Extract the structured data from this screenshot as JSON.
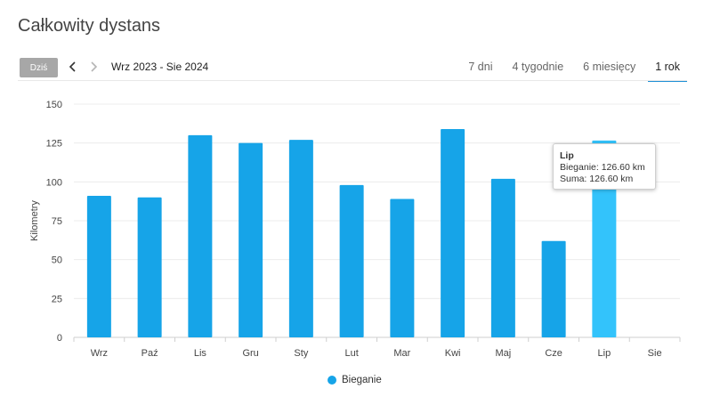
{
  "header": {
    "title": "Całkowity dystans"
  },
  "toolbar": {
    "today_label": "Dziś",
    "range_label": "Wrz 2023 - Sie 2024",
    "tabs": [
      {
        "label": "7 dni",
        "active": false
      },
      {
        "label": "4 tygodnie",
        "active": false
      },
      {
        "label": "6 miesięcy",
        "active": false
      },
      {
        "label": "1 rok",
        "active": true
      }
    ]
  },
  "colors": {
    "bar": "#16a4e8",
    "bar_highlight": "#33c3fb",
    "active_tab": "#1f90d6",
    "today_button": "#a7a7a7"
  },
  "icons": {
    "prev": "chevron-left-icon",
    "next": "chevron-right-icon"
  },
  "tooltip": {
    "title": "Lip",
    "line1": "Bieganie: 126.60 km",
    "line2": "Suma: 126.60 km"
  },
  "chart_data": {
    "type": "bar",
    "categories": [
      "Wrz",
      "Paź",
      "Lis",
      "Gru",
      "Sty",
      "Lut",
      "Mar",
      "Kwi",
      "Maj",
      "Cze",
      "Lip",
      "Sie"
    ],
    "series": [
      {
        "name": "Bieganie",
        "values": [
          91,
          90,
          130,
          125,
          127,
          98,
          89,
          134,
          102,
          62,
          126.6,
          0
        ]
      }
    ],
    "ylabel": "Kilometry",
    "yticks": [
      0,
      25,
      50,
      75,
      100,
      125,
      150
    ],
    "ylim": [
      0,
      150
    ],
    "grid": true,
    "legend": "bottom-center",
    "highlighted_category": "Lip"
  }
}
